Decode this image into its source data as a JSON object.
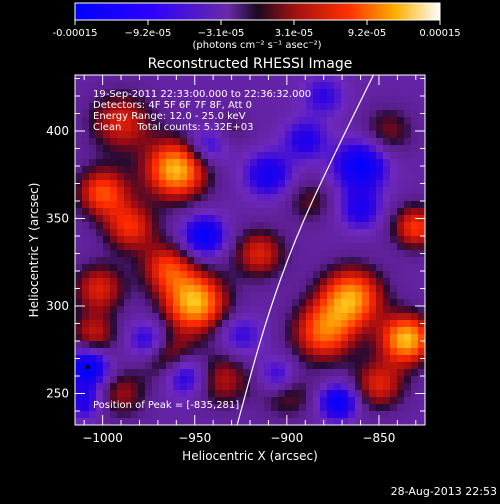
{
  "chart_data": {
    "type": "heatmap",
    "title": "Reconstructed RHESSI Image",
    "colorbar": {
      "tick_labels": [
        "-0.00015",
        "−9.2e-05",
        "−3.1e-05",
        "3.1e-05",
        "9.2e-05",
        "0.00015"
      ],
      "unit_label": "(photons cm⁻² s⁻¹ asec⁻²)",
      "range": [
        -0.00015,
        0.00015
      ]
    },
    "xlabel": "Heliocentric X (arcsec)",
    "ylabel": "Heliocentric Y (arcsec)",
    "xlim": [
      -1015,
      -825
    ],
    "ylim": [
      232,
      432
    ],
    "x_ticks": [
      {
        "value": -1000,
        "label": "−1000"
      },
      {
        "value": -950,
        "label": "−950"
      },
      {
        "value": -900,
        "label": "−900"
      },
      {
        "value": -850,
        "label": "−850"
      }
    ],
    "y_ticks": [
      {
        "value": 250,
        "label": "250"
      },
      {
        "value": 300,
        "label": "300"
      },
      {
        "value": 350,
        "label": "350"
      },
      {
        "value": 400,
        "label": "400"
      }
    ],
    "annotations": [
      "19-Sep-2011 22:33:00.000 to 22:36:32.000",
      "Detectors: 4F 5F 6F 7F 8F, Att 0",
      "Energy Range: 12.0 - 25.0 keV",
      "Clean     Total counts: 5.32E+03"
    ],
    "peak_label": "Position of Peak = [-835,281]",
    "peak": {
      "x": -835,
      "y": 281
    },
    "limb_curve": [
      [
        -927,
        232
      ],
      [
        -912,
        290
      ],
      [
        -895,
        340
      ],
      [
        -875,
        385
      ],
      [
        -853,
        432
      ]
    ],
    "blobs": [
      {
        "x": -990,
        "y": 405,
        "v": 0.55,
        "r": 12
      },
      {
        "x": -960,
        "y": 378,
        "v": 1.0,
        "r": 12
      },
      {
        "x": -1000,
        "y": 365,
        "v": 0.7,
        "r": 10
      },
      {
        "x": -985,
        "y": 345,
        "v": 0.6,
        "r": 10
      },
      {
        "x": -965,
        "y": 322,
        "v": 0.6,
        "r": 10
      },
      {
        "x": -950,
        "y": 302,
        "v": 1.0,
        "r": 12
      },
      {
        "x": -1002,
        "y": 310,
        "v": 0.55,
        "r": 10
      },
      {
        "x": -1005,
        "y": 283,
        "v": 0.5,
        "r": 9
      },
      {
        "x": -965,
        "y": 272,
        "v": 0.5,
        "r": 10
      },
      {
        "x": -935,
        "y": 258,
        "v": 0.45,
        "r": 11
      },
      {
        "x": -990,
        "y": 250,
        "v": 0.4,
        "r": 10
      },
      {
        "x": -915,
        "y": 330,
        "v": 0.55,
        "r": 10
      },
      {
        "x": -888,
        "y": 360,
        "v": 0.3,
        "r": 9
      },
      {
        "x": -880,
        "y": 285,
        "v": 0.75,
        "r": 12
      },
      {
        "x": -865,
        "y": 305,
        "v": 0.9,
        "r": 12
      },
      {
        "x": -835,
        "y": 281,
        "v": 1.0,
        "r": 10
      },
      {
        "x": -850,
        "y": 255,
        "v": 0.55,
        "r": 10
      },
      {
        "x": -830,
        "y": 345,
        "v": 0.65,
        "r": 9
      },
      {
        "x": -845,
        "y": 400,
        "v": 0.35,
        "r": 10
      },
      {
        "x": -900,
        "y": 250,
        "v": 0.35,
        "r": 10
      },
      {
        "x": -932,
        "y": 400,
        "v": 0.25,
        "r": 8
      },
      {
        "x": -1008,
        "y": 265,
        "v": -0.9,
        "r": 8
      },
      {
        "x": -955,
        "y": 260,
        "v": -0.6,
        "r": 8
      },
      {
        "x": -975,
        "y": 280,
        "v": -0.55,
        "r": 8
      },
      {
        "x": -945,
        "y": 340,
        "v": -0.8,
        "r": 8
      },
      {
        "x": -942,
        "y": 392,
        "v": -0.5,
        "r": 8
      },
      {
        "x": -910,
        "y": 375,
        "v": -0.6,
        "r": 9
      },
      {
        "x": -890,
        "y": 395,
        "v": -0.5,
        "r": 8
      },
      {
        "x": -880,
        "y": 420,
        "v": -0.4,
        "r": 8
      },
      {
        "x": -860,
        "y": 380,
        "v": -0.8,
        "r": 10
      },
      {
        "x": -860,
        "y": 355,
        "v": -0.5,
        "r": 8
      },
      {
        "x": -905,
        "y": 260,
        "v": -0.5,
        "r": 7
      },
      {
        "x": -872,
        "y": 245,
        "v": -0.8,
        "r": 7
      },
      {
        "x": -925,
        "y": 283,
        "v": -0.4,
        "r": 8
      },
      {
        "x": -1010,
        "y": 245,
        "v": -0.5,
        "r": 7
      }
    ]
  },
  "timestamp": "28-Aug-2013 22:53"
}
